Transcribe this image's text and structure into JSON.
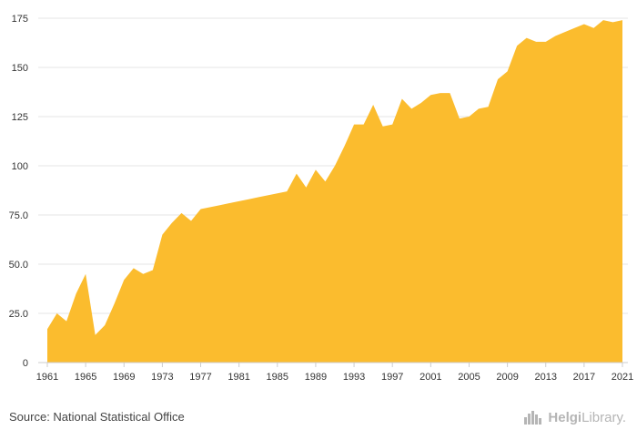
{
  "chart_data": {
    "type": "area",
    "title": "",
    "xlabel": "",
    "ylabel": "",
    "ylim": [
      0,
      175
    ],
    "yticks": [
      "0",
      "25.0",
      "50.0",
      "75.0",
      "100",
      "125",
      "150",
      "175"
    ],
    "ytick_values": [
      0,
      25,
      50,
      75,
      100,
      125,
      150,
      175
    ],
    "xticks": [
      "1961",
      "1965",
      "1969",
      "1973",
      "1977",
      "1981",
      "1985",
      "1989",
      "1993",
      "1997",
      "2001",
      "2005",
      "2009",
      "2013",
      "2017",
      "2021"
    ],
    "grid": true,
    "color": "#FBBC2E",
    "x": [
      1961,
      1962,
      1963,
      1964,
      1965,
      1966,
      1967,
      1968,
      1969,
      1970,
      1971,
      1972,
      1973,
      1974,
      1975,
      1976,
      1977,
      1978,
      1979,
      1980,
      1981,
      1982,
      1983,
      1984,
      1985,
      1986,
      1987,
      1988,
      1989,
      1990,
      1991,
      1992,
      1993,
      1994,
      1995,
      1996,
      1997,
      1998,
      1999,
      2000,
      2001,
      2002,
      2003,
      2004,
      2005,
      2006,
      2007,
      2008,
      2009,
      2010,
      2011,
      2012,
      2013,
      2014,
      2015,
      2016,
      2017,
      2018,
      2019,
      2020,
      2021
    ],
    "values": [
      17,
      25,
      21,
      35,
      45,
      14,
      19,
      30,
      42,
      48,
      45,
      47,
      65,
      71,
      76,
      72,
      78,
      79,
      80,
      81,
      82,
      83,
      84,
      85,
      86,
      87,
      96,
      89,
      98,
      92,
      100,
      110,
      121,
      121,
      131,
      120,
      121,
      134,
      129,
      132,
      136,
      137,
      137,
      124,
      125,
      129,
      130,
      144,
      148,
      161,
      165,
      163,
      163,
      166,
      168,
      170,
      172,
      170,
      174,
      173,
      174
    ]
  },
  "footer": {
    "source": "Source: National Statistical Office",
    "logo_text_bold": "Helgi",
    "logo_text": "Library."
  }
}
